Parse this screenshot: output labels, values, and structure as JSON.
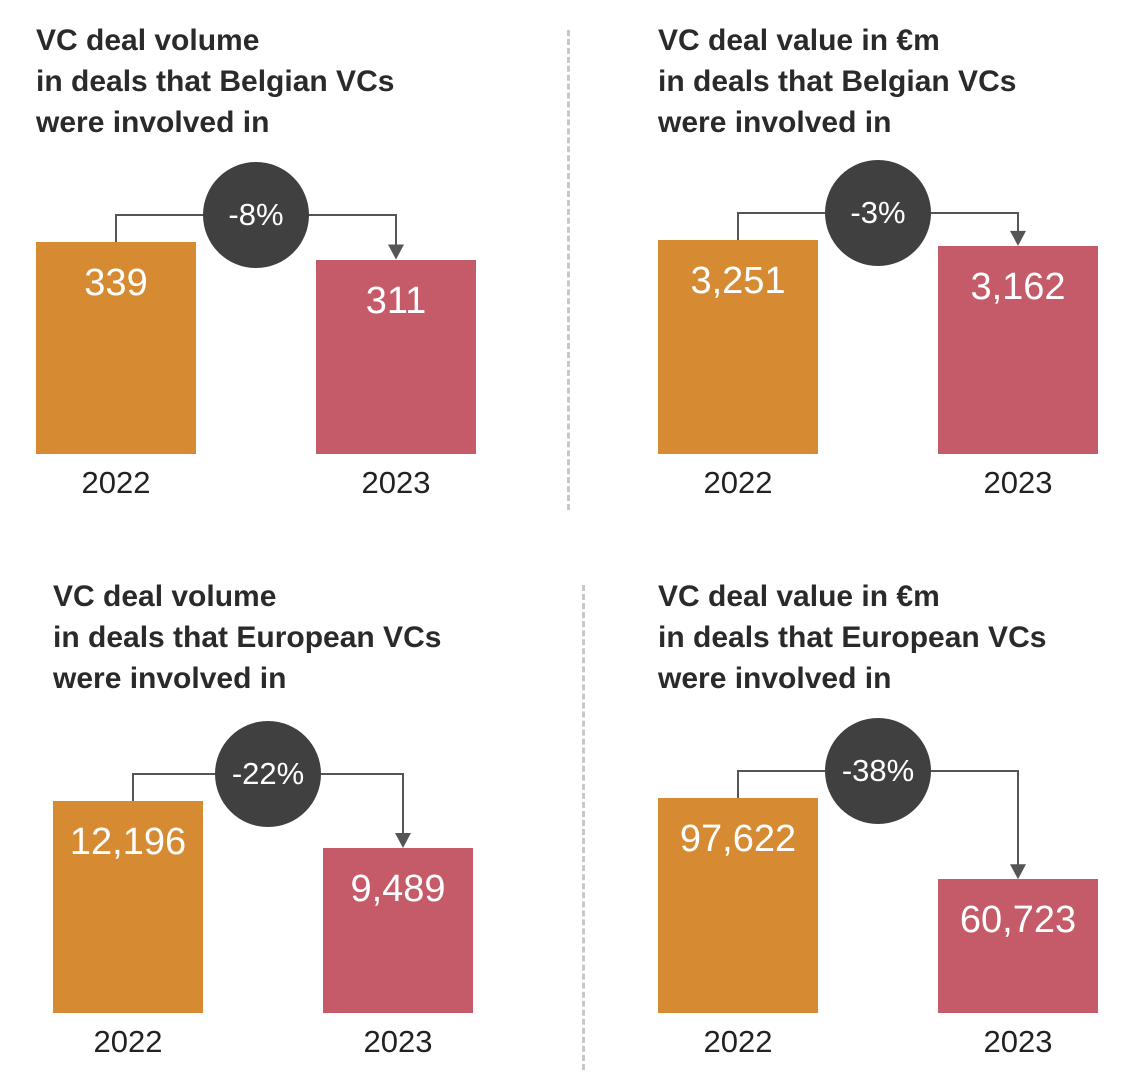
{
  "colors": {
    "bar_2022": "#d68b32",
    "bar_2023": "#c55a68",
    "badge": "#404040",
    "connector": "#555555"
  },
  "chart_data": [
    {
      "type": "bar",
      "title_lines": [
        "VC deal volume",
        "in deals that Belgian VCs",
        "were involved in"
      ],
      "categories": [
        "2022",
        "2023"
      ],
      "values": [
        339,
        311
      ],
      "value_labels": [
        "339",
        "311"
      ],
      "change_label": "-8%"
    },
    {
      "type": "bar",
      "title_lines": [
        "VC deal value in €m",
        "in deals that Belgian VCs",
        "were involved in"
      ],
      "categories": [
        "2022",
        "2023"
      ],
      "values": [
        3251,
        3162
      ],
      "value_labels": [
        "3,251",
        "3,162"
      ],
      "change_label": "-3%"
    },
    {
      "type": "bar",
      "title_lines": [
        "VC deal volume",
        "in deals that European VCs",
        "were involved in"
      ],
      "categories": [
        "2022",
        "2023"
      ],
      "values": [
        12196,
        9489
      ],
      "value_labels": [
        "12,196",
        "9,489"
      ],
      "change_label": "-22%"
    },
    {
      "type": "bar",
      "title_lines": [
        "VC deal value in €m",
        "in deals that European VCs",
        "were involved in"
      ],
      "categories": [
        "2022",
        "2023"
      ],
      "values": [
        97622,
        60723
      ],
      "value_labels": [
        "97,622",
        "60,723"
      ],
      "change_label": "-38%"
    }
  ]
}
